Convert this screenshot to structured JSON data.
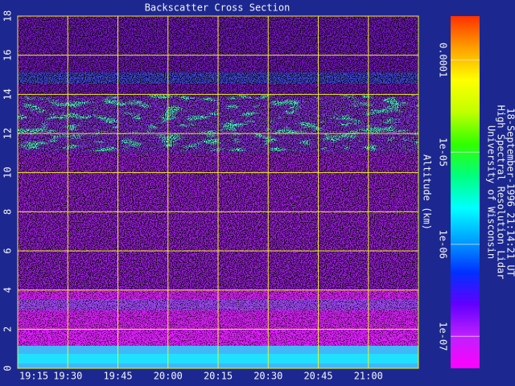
{
  "chart_data": {
    "type": "heatmap",
    "title": "Backscatter Cross Section",
    "ylabel": "Altitude (km)",
    "ylim": [
      0,
      18
    ],
    "yticks": [
      0,
      2,
      4,
      6,
      8,
      10,
      12,
      14,
      16,
      18
    ],
    "xlim": [
      "19:15",
      "21:15"
    ],
    "xticks": [
      "19:15",
      "19:30",
      "19:45",
      "20:00",
      "20:15",
      "20:30",
      "20:45",
      "21:00"
    ],
    "grid": true,
    "grid_color": "#f0f020",
    "colorbar": {
      "log": true,
      "clim": [
        4.5e-08,
        0.0003
      ],
      "ticks": [
        {
          "value": 0.0001,
          "label": "0.0001"
        },
        {
          "value": 1e-05,
          "label": "1e-05"
        },
        {
          "value": 1e-06,
          "label": "1e-06"
        },
        {
          "value": 1e-07,
          "label": "1e-07"
        }
      ],
      "colors": [
        "#ff00ff",
        "#c020ff",
        "#6000ff",
        "#0030ff",
        "#00a0ff",
        "#00ffff",
        "#00ff80",
        "#30ff00",
        "#c0ff00",
        "#ffff00",
        "#ffa000",
        "#ff3000"
      ]
    },
    "notes": [
      "University of Wisconsin",
      "High Spectral Resolution Lidar",
      "18-September-1996 21:14:21 UT"
    ]
  }
}
